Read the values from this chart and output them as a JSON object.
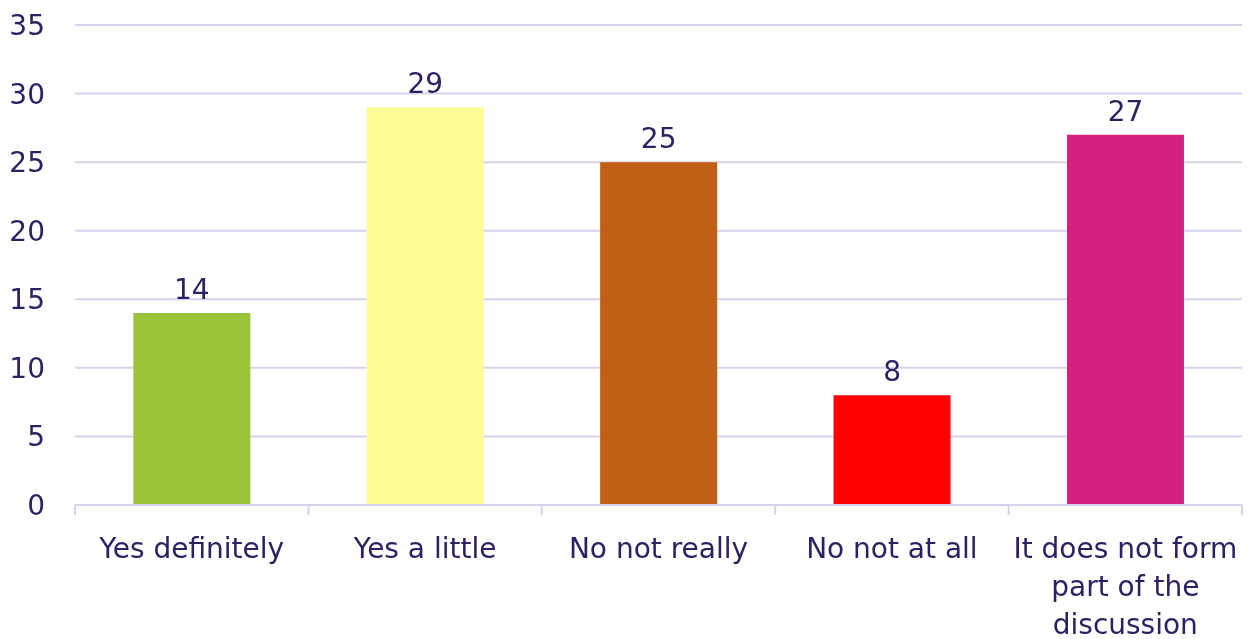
{
  "chart_data": {
    "type": "bar",
    "categories": [
      "Yes definitely",
      "Yes a little",
      "No not really",
      "No not at all",
      "It does not form part of the discussion"
    ],
    "values": [
      14,
      29,
      25,
      8,
      27
    ],
    "colors": [
      "#9bc43a",
      "#fdfd96",
      "#c25f16",
      "#ff0000",
      "#d4207f"
    ],
    "ylim": [
      0,
      35
    ],
    "yticks": [
      0,
      5,
      10,
      15,
      20,
      25,
      30,
      35
    ],
    "grid": "y",
    "data_labels": true
  }
}
